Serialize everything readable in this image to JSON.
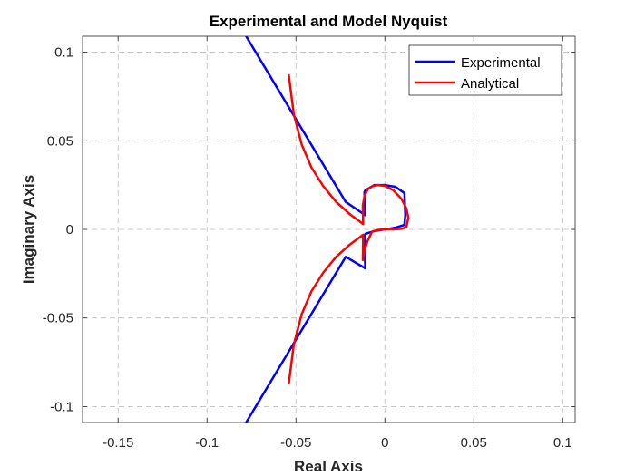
{
  "chart_data": {
    "type": "line",
    "title": "Experimental and Model Nyquist",
    "xlabel": "Real Axis",
    "ylabel": "Imaginary Axis",
    "xlim": [
      -0.17,
      0.107
    ],
    "ylim": [
      -0.109,
      0.109
    ],
    "xticks": [
      -0.15,
      -0.1,
      -0.05,
      0,
      0.05,
      0.1
    ],
    "xtick_labels": [
      "-0.15",
      "-0.1",
      "-0.05",
      "0",
      "0.05",
      "0.1"
    ],
    "yticks": [
      -0.1,
      -0.05,
      0,
      0.05,
      0.1
    ],
    "ytick_labels": [
      "-0.1",
      "-0.05",
      "0",
      "0.05",
      "0.1"
    ],
    "grid": true,
    "legend_position": "top-right",
    "series": [
      {
        "name": "Experimental",
        "color": "#0000ff",
        "x": [
          -0.078,
          -0.022,
          -0.011,
          -0.0115,
          -0.011,
          -0.006,
          0,
          0.006,
          0.011,
          0.0115,
          0.011,
          0.006,
          0,
          -0.006,
          -0.011,
          -0.0115,
          -0.011,
          -0.022,
          -0.078
        ],
        "y": [
          0.109,
          0.0155,
          0.008,
          0.021,
          0.022,
          0.025,
          0.025,
          0.024,
          0.0205,
          0.008,
          0.0025,
          0.001,
          0,
          -0.001,
          -0.0025,
          -0.008,
          -0.022,
          -0.0155,
          -0.109
        ]
      },
      {
        "name": "Analytical",
        "color": "#ff0000",
        "x": [
          -0.054,
          -0.0512,
          -0.0468,
          -0.0413,
          -0.0347,
          -0.0274,
          -0.0196,
          -0.0122,
          -0.0124,
          -0.0114,
          -0.0097,
          -0.0072,
          -0.0039,
          0,
          0.0046,
          0.0093,
          0.0121,
          0.0132,
          0.0121,
          0.0093,
          0.0046,
          0,
          -0.0039,
          -0.0072,
          -0.0097,
          -0.0114,
          -0.0124,
          -0.0122,
          -0.0196,
          -0.0274,
          -0.0347,
          -0.0413,
          -0.0468,
          -0.0512,
          -0.054
        ],
        "y": [
          0.087,
          0.065,
          0.048,
          0.035,
          0.0245,
          0.0155,
          0.0085,
          0.003,
          0.0135,
          0.019,
          0.0225,
          0.0243,
          0.025,
          0.0245,
          0.0222,
          0.0173,
          0.0118,
          0.0065,
          0.0013,
          0.0003,
          0,
          0,
          -0.0003,
          -0.0013,
          -0.0065,
          -0.0118,
          -0.0173,
          -0.003,
          -0.0085,
          -0.0155,
          -0.0245,
          -0.035,
          -0.048,
          -0.065,
          -0.087
        ]
      }
    ]
  }
}
